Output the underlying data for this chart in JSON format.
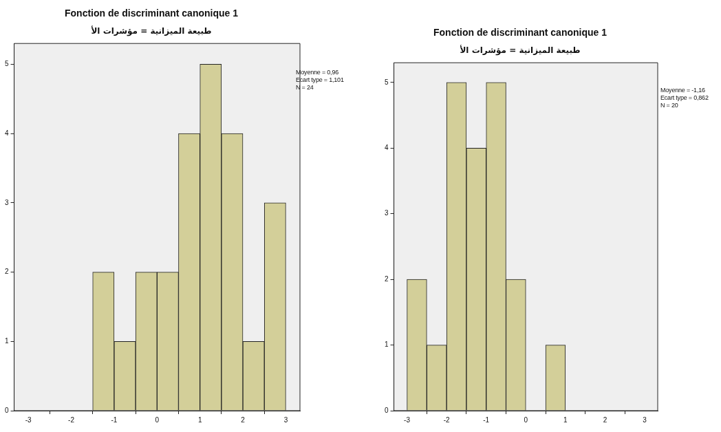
{
  "chart_data": [
    {
      "type": "histogram",
      "title": "Fonction de discriminant canonique 1",
      "subtitle": "طبيعة الميزانية = مؤشرات الأ",
      "bins": [
        -1.5,
        -1,
        -0.5,
        0,
        0.5,
        1,
        1.5,
        2,
        2.5,
        3
      ],
      "values": [
        2,
        1,
        2,
        2,
        4,
        5,
        4,
        1,
        3
      ],
      "color": "#d3cf99",
      "xlim": [
        -3.33,
        3.33
      ],
      "xticks": [
        -3,
        -2,
        -1,
        0,
        1,
        2,
        3
      ],
      "ylim": [
        0,
        5.3
      ],
      "yticks": [
        0,
        1,
        2,
        3,
        4,
        5
      ],
      "annotations": [
        "Moyenne = 0,96",
        "Ecart type = 1,101",
        "N = 24"
      ]
    },
    {
      "type": "histogram",
      "title": "Fonction de discriminant canonique 1",
      "subtitle": "طبيعة الميزانية = مؤشرات الأ",
      "bins": [
        -3,
        -2.5,
        -2,
        -1.5,
        -1,
        -0.5,
        0,
        0.5,
        1
      ],
      "values": [
        2,
        1,
        5,
        4,
        5,
        2,
        0,
        1
      ],
      "color": "#d3cf99",
      "xlim": [
        -3.33,
        3.33
      ],
      "xticks": [
        -3,
        -2,
        -1,
        0,
        1,
        2,
        3
      ],
      "ylim": [
        0,
        5.3
      ],
      "yticks": [
        0,
        1,
        2,
        3,
        4,
        5
      ],
      "annotations": [
        "Moyenne = -1,16",
        "Ecart type = 0,862",
        "N = 20"
      ]
    }
  ]
}
